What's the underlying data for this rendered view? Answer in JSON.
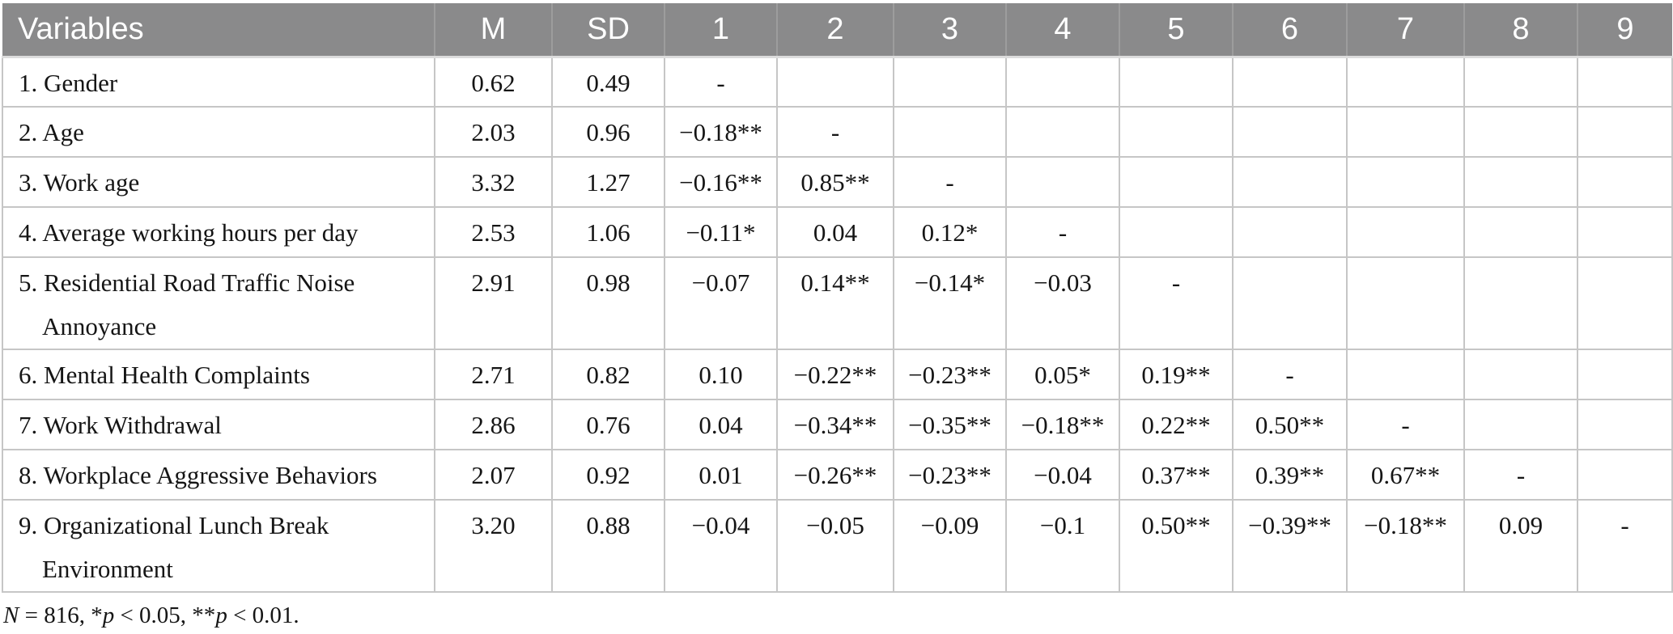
{
  "table": {
    "columns": [
      "Variables",
      "M",
      "SD",
      "1",
      "2",
      "3",
      "4",
      "5",
      "6",
      "7",
      "8",
      "9"
    ],
    "rows": [
      {
        "label_lines": [
          "1. Gender"
        ],
        "values": [
          "0.62",
          "0.49",
          "-",
          "",
          "",
          "",
          "",
          "",
          "",
          "",
          ""
        ]
      },
      {
        "label_lines": [
          "2. Age"
        ],
        "values": [
          "2.03",
          "0.96",
          "−0.18**",
          "-",
          "",
          "",
          "",
          "",
          "",
          "",
          ""
        ]
      },
      {
        "label_lines": [
          "3. Work age"
        ],
        "values": [
          "3.32",
          "1.27",
          "−0.16**",
          "0.85**",
          "-",
          "",
          "",
          "",
          "",
          "",
          ""
        ]
      },
      {
        "label_lines": [
          "4. Average working hours per day"
        ],
        "values": [
          "2.53",
          "1.06",
          "−0.11*",
          "0.04",
          "0.12*",
          "-",
          "",
          "",
          "",
          "",
          ""
        ]
      },
      {
        "label_lines": [
          "5. Residential Road Traffic Noise",
          "Annoyance"
        ],
        "values": [
          "2.91",
          "0.98",
          "−0.07",
          "0.14**",
          "−0.14*",
          "−0.03",
          "-",
          "",
          "",
          "",
          ""
        ]
      },
      {
        "label_lines": [
          "6. Mental Health Complaints"
        ],
        "values": [
          "2.71",
          "0.82",
          "0.10",
          "−0.22**",
          "−0.23**",
          "0.05*",
          "0.19**",
          "-",
          "",
          "",
          ""
        ]
      },
      {
        "label_lines": [
          "7. Work Withdrawal"
        ],
        "values": [
          "2.86",
          "0.76",
          "0.04",
          "−0.34**",
          "−0.35**",
          "−0.18**",
          "0.22**",
          "0.50**",
          "-",
          "",
          ""
        ]
      },
      {
        "label_lines": [
          "8. Workplace Aggressive Behaviors"
        ],
        "values": [
          "2.07",
          "0.92",
          "0.01",
          "−0.26**",
          "−0.23**",
          "−0.04",
          "0.37**",
          "0.39**",
          "0.67**",
          "-",
          ""
        ]
      },
      {
        "label_lines": [
          "9. Organizational Lunch Break",
          "Environment"
        ],
        "values": [
          "3.20",
          "0.88",
          "−0.04",
          "−0.05",
          "−0.09",
          "−0.1",
          "0.50**",
          "−0.39**",
          "−0.18**",
          "0.09",
          "-"
        ]
      }
    ],
    "footnote_parts": [
      {
        "text": "N",
        "italic": true
      },
      {
        "text": " = 816, *",
        "italic": false
      },
      {
        "text": "p",
        "italic": true
      },
      {
        "text": " < 0.05, **",
        "italic": false
      },
      {
        "text": "p",
        "italic": true
      },
      {
        "text": " < 0.01.",
        "italic": false
      }
    ]
  },
  "colors": {
    "header_bg": "#8a8a8b",
    "header_text": "#ffffff",
    "grid_line": "#c6c6c6",
    "body_text": "#151515"
  }
}
